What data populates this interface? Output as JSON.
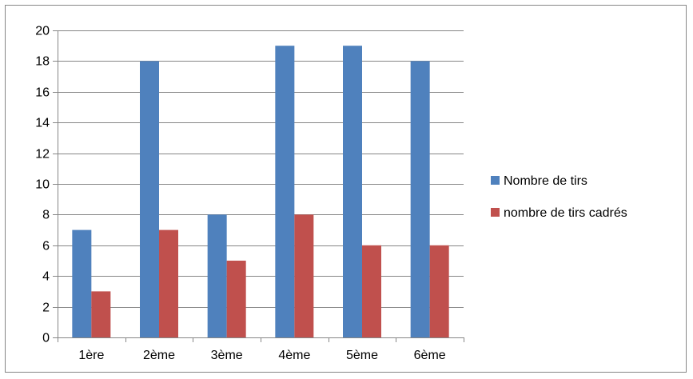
{
  "chart_data": {
    "type": "bar",
    "categories": [
      "1ère",
      "2ème",
      "3ème",
      "4ème",
      "5ème",
      "6ème"
    ],
    "series": [
      {
        "name": "Nombre de tirs",
        "values": [
          7,
          18,
          8,
          19,
          19,
          18
        ],
        "color": "#4F81BD"
      },
      {
        "name": "nombre de tirs cadrés",
        "values": [
          3,
          7,
          5,
          8,
          6,
          6
        ],
        "color": "#C0504D"
      }
    ],
    "title": "",
    "xlabel": "",
    "ylabel": "",
    "ylim": [
      0,
      20
    ],
    "yticks": [
      0,
      2,
      4,
      6,
      8,
      10,
      12,
      14,
      16,
      18,
      20
    ],
    "grid": true,
    "legend_position": "right"
  }
}
